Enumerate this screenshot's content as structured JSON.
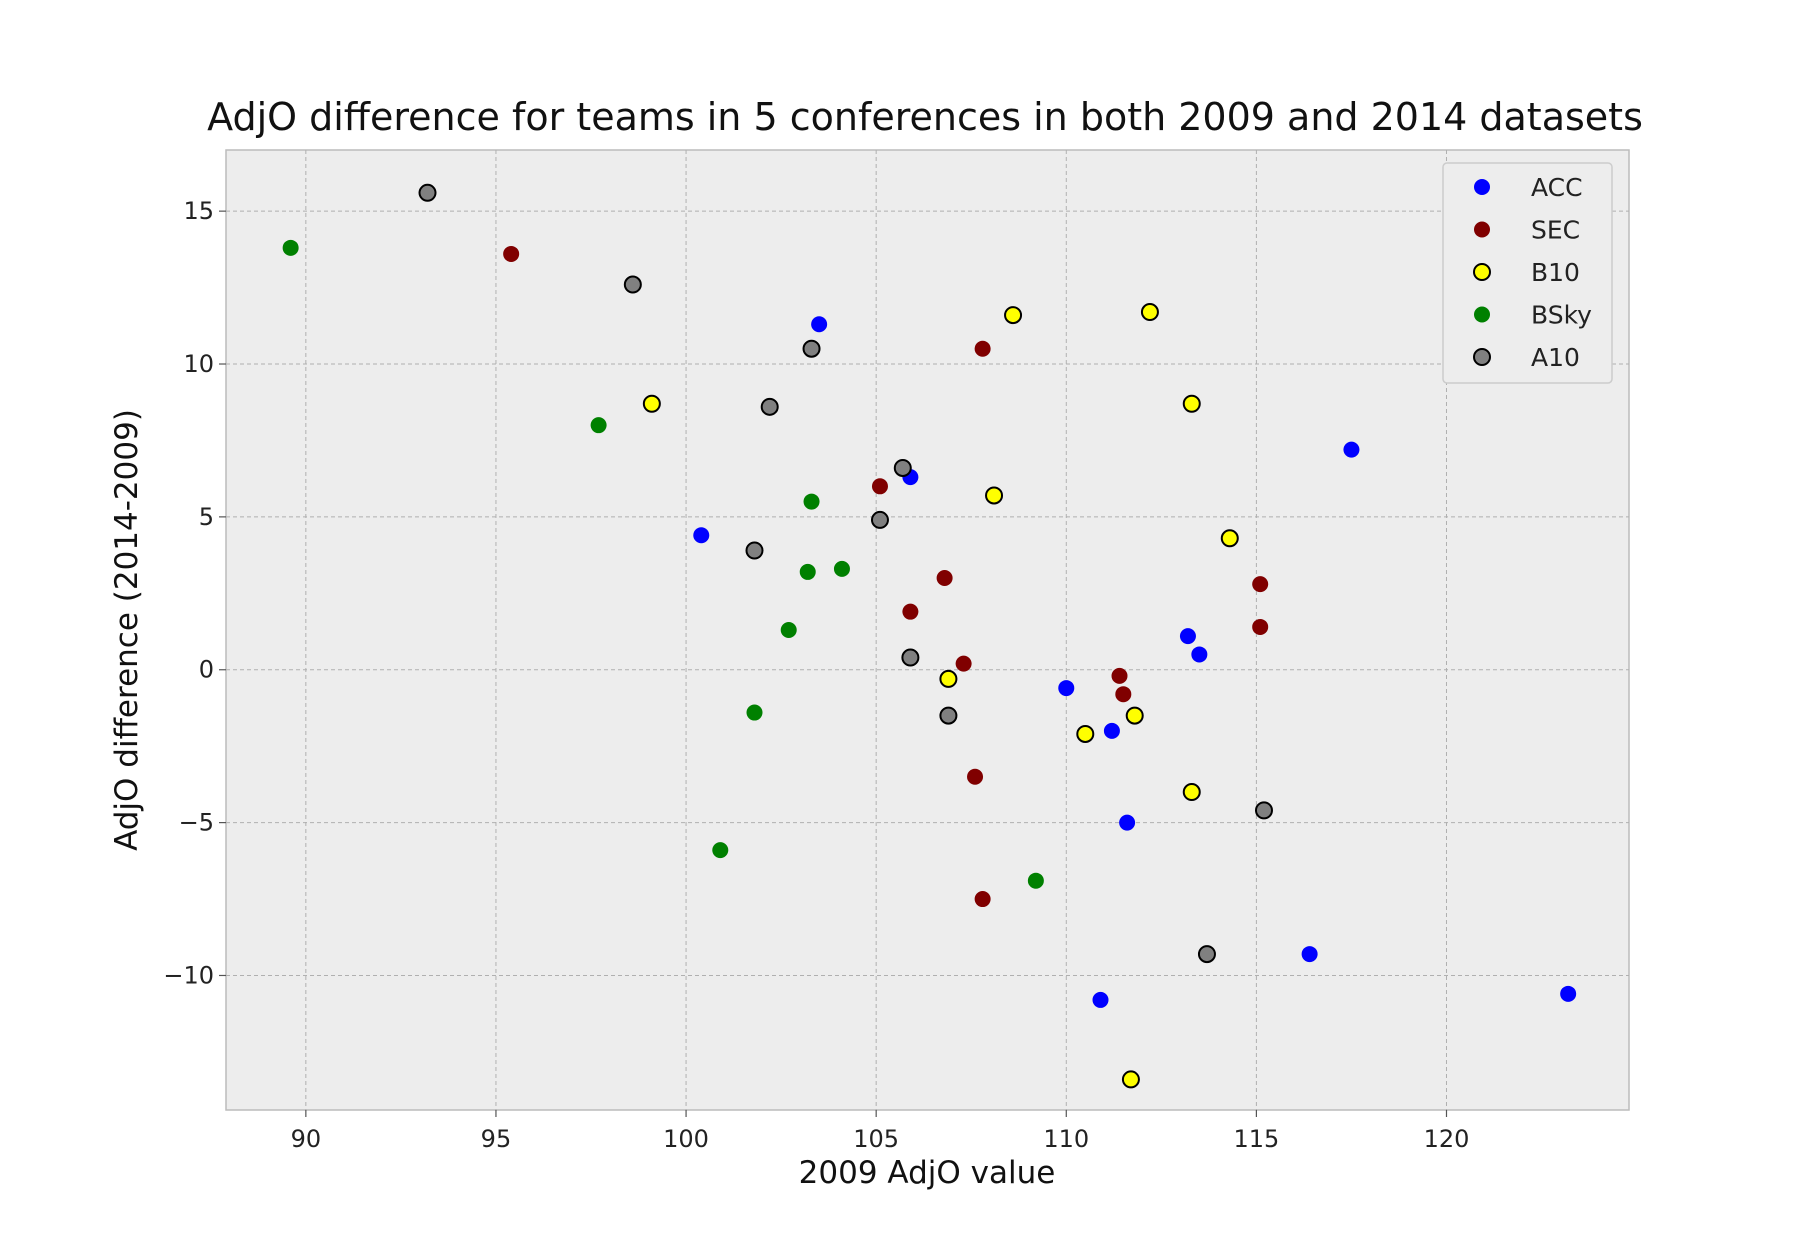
{
  "chart_data": {
    "type": "scatter",
    "title": "AdjO difference for teams in 5 conferences in both 2009 and 2014 datasets",
    "xlabel": "2009 AdjO value",
    "ylabel": "AdjO difference (2014-2009)",
    "xlim": [
      87.9,
      124.8
    ],
    "ylim": [
      -14.4,
      17.0
    ],
    "xticks": [
      90,
      95,
      100,
      105,
      110,
      115,
      120
    ],
    "yticks": [
      -10,
      -5,
      0,
      5,
      10,
      15
    ],
    "ytick_labels": [
      "−10",
      "−5",
      "0",
      "5",
      "10",
      "15"
    ],
    "grid": true,
    "legend_position": "top-right",
    "series": [
      {
        "name": "ACC",
        "color": "#0000ff",
        "edge": "none",
        "points": [
          [
            103.5,
            11.3
          ],
          [
            105.9,
            6.3
          ],
          [
            100.4,
            4.4
          ],
          [
            117.5,
            7.2
          ],
          [
            113.2,
            1.1
          ],
          [
            113.5,
            0.5
          ],
          [
            110.0,
            -0.6
          ],
          [
            111.2,
            -2.0
          ],
          [
            111.6,
            -5.0
          ],
          [
            116.4,
            -9.3
          ],
          [
            110.9,
            -10.8
          ],
          [
            123.2,
            -10.6
          ]
        ]
      },
      {
        "name": "SEC",
        "color": "#800000",
        "edge": "none",
        "points": [
          [
            95.4,
            13.6
          ],
          [
            107.8,
            10.5
          ],
          [
            105.1,
            6.0
          ],
          [
            106.8,
            3.0
          ],
          [
            105.9,
            1.9
          ],
          [
            107.3,
            0.2
          ],
          [
            111.4,
            -0.2
          ],
          [
            111.5,
            -0.8
          ],
          [
            107.6,
            -3.5
          ],
          [
            107.8,
            -7.5
          ],
          [
            115.1,
            2.8
          ],
          [
            115.1,
            1.4
          ]
        ]
      },
      {
        "name": "B10",
        "color": "#ffff00",
        "edge": "#000000",
        "points": [
          [
            99.1,
            8.7
          ],
          [
            108.6,
            11.6
          ],
          [
            112.2,
            11.7
          ],
          [
            113.3,
            8.7
          ],
          [
            108.1,
            5.7
          ],
          [
            114.3,
            4.3
          ],
          [
            106.9,
            -0.3
          ],
          [
            110.5,
            -2.1
          ],
          [
            111.8,
            -1.5
          ],
          [
            113.3,
            -4.0
          ],
          [
            111.7,
            -13.4
          ]
        ]
      },
      {
        "name": "BSky",
        "color": "#008000",
        "edge": "none",
        "points": [
          [
            89.6,
            13.8
          ],
          [
            97.7,
            8.0
          ],
          [
            103.3,
            5.5
          ],
          [
            103.2,
            3.2
          ],
          [
            104.1,
            3.3
          ],
          [
            102.7,
            1.3
          ],
          [
            101.8,
            -1.4
          ],
          [
            100.9,
            -5.9
          ],
          [
            109.2,
            -6.9
          ]
        ]
      },
      {
        "name": "A10",
        "color": "#808080",
        "edge": "#000000",
        "points": [
          [
            93.2,
            15.6
          ],
          [
            98.6,
            12.6
          ],
          [
            103.3,
            10.5
          ],
          [
            102.2,
            8.6
          ],
          [
            105.7,
            6.6
          ],
          [
            105.1,
            4.9
          ],
          [
            101.8,
            3.9
          ],
          [
            105.9,
            0.4
          ],
          [
            106.9,
            -1.5
          ],
          [
            113.7,
            -9.3
          ],
          [
            115.2,
            -4.6
          ]
        ]
      }
    ]
  }
}
